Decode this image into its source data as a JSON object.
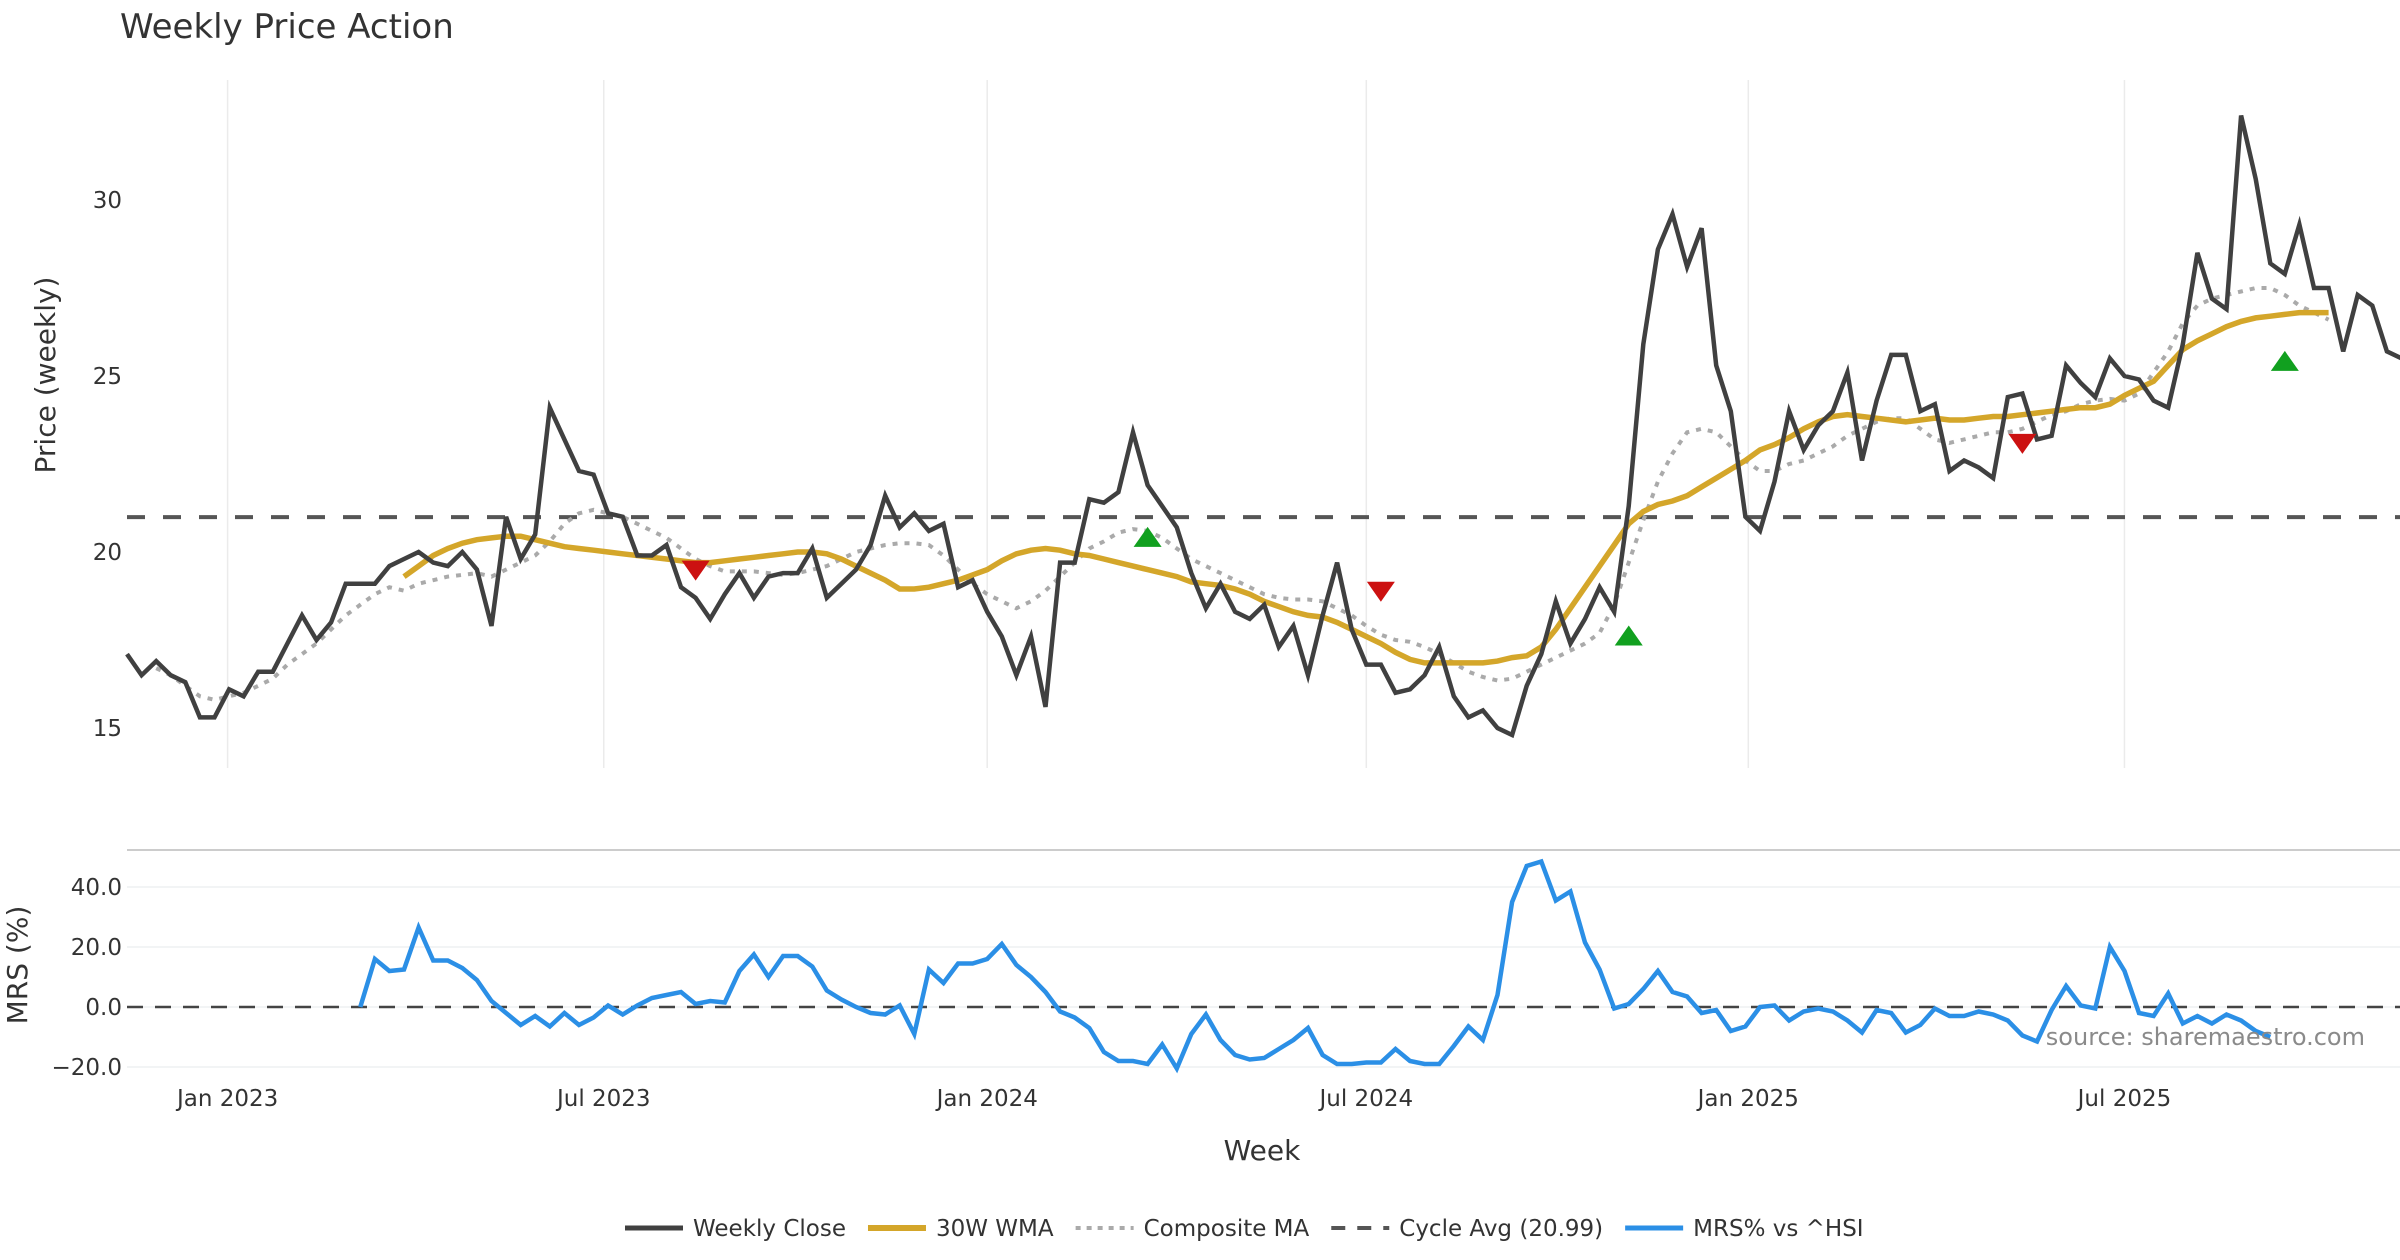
{
  "chart_data": {
    "type": "line",
    "title": "Weekly Price Action",
    "xlabel": "Week",
    "source_label": "source: sharemaestro.com",
    "x_start": "2022-11-14",
    "x_ticks": [
      {
        "label": "Jan 2023",
        "week_index": 6.9
      },
      {
        "label": "Jul 2023",
        "week_index": 32.7
      },
      {
        "label": "Jan 2024",
        "week_index": 59.0
      },
      {
        "label": "Jul 2024",
        "week_index": 85.0
      },
      {
        "label": "Jan 2025",
        "week_index": 111.2
      },
      {
        "label": "Jul 2025",
        "week_index": 137.0
      }
    ],
    "price_panel": {
      "ylabel": "Price (weekly)",
      "ylim": [
        13.8,
        33.7
      ],
      "y_ticks": [
        15,
        20,
        25,
        30
      ],
      "grid": "vertical",
      "cycle_avg": 20.99,
      "series": [
        {
          "name": "Weekly Close",
          "color": "#404040",
          "start_index": 0,
          "values": [
            17.1,
            16.5,
            16.9,
            16.5,
            16.3,
            15.3,
            15.3,
            16.1,
            15.9,
            16.6,
            16.6,
            17.4,
            18.2,
            17.5,
            18.0,
            19.1,
            19.1,
            19.1,
            19.6,
            19.8,
            20.0,
            19.7,
            19.6,
            20.0,
            19.5,
            17.9,
            21.0,
            19.8,
            20.5,
            24.1,
            23.2,
            22.3,
            22.2,
            21.1,
            21.0,
            19.9,
            19.9,
            20.2,
            19.0,
            18.7,
            18.1,
            18.8,
            19.4,
            18.7,
            19.3,
            19.4,
            19.4,
            20.1,
            18.7,
            19.1,
            19.5,
            20.2,
            21.6,
            20.7,
            21.1,
            20.6,
            20.8,
            19.0,
            19.2,
            18.3,
            17.6,
            16.5,
            17.6,
            15.6,
            19.7,
            19.7,
            21.5,
            21.4,
            21.7,
            23.4,
            21.9,
            21.3,
            20.7,
            19.4,
            18.4,
            19.1,
            18.3,
            18.1,
            18.5,
            17.3,
            17.9,
            16.5,
            18.2,
            19.7,
            17.8,
            16.8,
            16.8,
            16.0,
            16.1,
            16.5,
            17.3,
            15.9,
            15.3,
            15.5,
            15.0,
            14.8,
            16.2,
            17.1,
            18.6,
            17.4,
            18.1,
            19.0,
            18.3,
            21.3,
            25.9,
            28.6,
            29.6,
            28.1,
            29.2,
            25.3,
            24.0,
            21.0,
            20.6,
            22.0,
            24.0,
            22.9,
            23.6,
            24.0,
            25.1,
            22.6,
            24.3,
            25.6,
            25.6,
            24.0,
            24.2,
            22.3,
            22.6,
            22.4,
            22.1,
            24.4,
            24.5,
            23.2,
            23.3,
            25.3,
            24.8,
            24.4,
            25.5,
            25.0,
            24.9,
            24.3,
            24.1,
            25.9,
            28.5,
            27.2,
            26.9,
            32.4,
            30.6,
            28.2,
            27.9,
            29.3,
            27.5,
            27.5,
            25.7,
            27.3,
            27.0,
            25.7,
            25.5
          ]
        },
        {
          "name": "30W WMA",
          "color": "#D4A62A",
          "start_index": 19,
          "values": [
            19.3,
            19.6,
            19.9,
            20.1,
            20.25,
            20.35,
            20.4,
            20.45,
            20.45,
            20.35,
            20.25,
            20.15,
            20.1,
            20.05,
            20.0,
            19.95,
            19.9,
            19.85,
            19.8,
            19.75,
            19.7,
            19.7,
            19.75,
            19.8,
            19.85,
            19.9,
            19.95,
            20.0,
            20.0,
            19.95,
            19.8,
            19.6,
            19.4,
            19.2,
            18.95,
            18.95,
            19.0,
            19.1,
            19.2,
            19.35,
            19.5,
            19.75,
            19.95,
            20.05,
            20.1,
            20.05,
            19.95,
            19.9,
            19.8,
            19.7,
            19.6,
            19.5,
            19.4,
            19.3,
            19.15,
            19.1,
            19.05,
            18.95,
            18.8,
            18.6,
            18.45,
            18.3,
            18.2,
            18.15,
            18.0,
            17.8,
            17.6,
            17.4,
            17.15,
            16.95,
            16.85,
            16.85,
            16.85,
            16.85,
            16.85,
            16.9,
            17.0,
            17.05,
            17.3,
            17.8,
            18.4,
            19.0,
            19.6,
            20.2,
            20.8,
            21.15,
            21.35,
            21.45,
            21.6,
            21.85,
            22.1,
            22.35,
            22.6,
            22.9,
            23.05,
            23.25,
            23.5,
            23.7,
            23.85,
            23.9,
            23.85,
            23.8,
            23.75,
            23.7,
            23.75,
            23.8,
            23.75,
            23.75,
            23.8,
            23.85,
            23.85,
            23.9,
            23.95,
            24.0,
            24.05,
            24.1,
            24.1,
            24.2,
            24.45,
            24.65,
            24.85,
            25.3,
            25.75,
            26.0,
            26.2,
            26.4,
            26.55,
            26.65,
            26.7,
            26.75,
            26.8,
            26.8,
            26.8
          ]
        },
        {
          "name": "Composite MA",
          "color": "#AAAAAA",
          "start_index": 2,
          "values": [
            16.7,
            16.5,
            16.2,
            15.9,
            15.8,
            15.9,
            16.0,
            16.2,
            16.4,
            16.8,
            17.1,
            17.4,
            17.8,
            18.2,
            18.5,
            18.8,
            19.0,
            18.9,
            19.1,
            19.2,
            19.3,
            19.35,
            19.4,
            19.3,
            19.5,
            19.7,
            19.9,
            20.3,
            20.8,
            21.1,
            21.2,
            21.1,
            21.0,
            20.8,
            20.6,
            20.4,
            20.1,
            19.8,
            19.6,
            19.45,
            19.45,
            19.45,
            19.4,
            19.35,
            19.4,
            19.5,
            19.6,
            19.8,
            20.0,
            20.1,
            20.2,
            20.25,
            20.25,
            20.2,
            19.9,
            19.5,
            19.1,
            18.8,
            18.6,
            18.4,
            18.6,
            18.9,
            19.3,
            19.7,
            20.1,
            20.3,
            20.55,
            20.65,
            20.6,
            20.4,
            20.1,
            19.8,
            19.6,
            19.4,
            19.2,
            19.0,
            18.8,
            18.7,
            18.65,
            18.65,
            18.6,
            18.4,
            18.2,
            17.9,
            17.65,
            17.5,
            17.45,
            17.3,
            17.1,
            16.85,
            16.6,
            16.45,
            16.35,
            16.4,
            16.6,
            16.8,
            17.0,
            17.2,
            17.4,
            17.7,
            18.5,
            19.7,
            20.9,
            22.0,
            22.8,
            23.4,
            23.5,
            23.4,
            23.0,
            22.6,
            22.3,
            22.3,
            22.5,
            22.6,
            22.8,
            23.0,
            23.3,
            23.5,
            23.7,
            23.8,
            23.8,
            23.5,
            23.2,
            23.1,
            23.2,
            23.3,
            23.4,
            23.4,
            23.5,
            23.7,
            23.9,
            24.0,
            24.2,
            24.3,
            24.35,
            24.3,
            24.5,
            25.1,
            25.7,
            26.5,
            27.0,
            27.2,
            27.3,
            27.4,
            27.5,
            27.5,
            27.3,
            27.0,
            26.8,
            26.6
          ]
        },
        {
          "name": "MRS% vs ^HSI",
          "color": "#2B8FE6",
          "panel": "mrs"
        }
      ],
      "signals": [
        {
          "type": "sell",
          "week_index": 39,
          "value": 19.5,
          "color": "#CC1111"
        },
        {
          "type": "buy",
          "week_index": 70,
          "value": 20.4,
          "color": "#11A01F"
        },
        {
          "type": "sell",
          "week_index": 86,
          "value": 18.9,
          "color": "#CC1111"
        },
        {
          "type": "buy",
          "week_index": 103,
          "value": 17.6,
          "color": "#11A01F"
        },
        {
          "type": "sell",
          "week_index": 130,
          "value": 23.1,
          "color": "#CC1111"
        },
        {
          "type": "buy",
          "week_index": 148,
          "value": 25.4,
          "color": "#11A01F"
        }
      ]
    },
    "mrs_panel": {
      "ylabel": "MRS (%)",
      "ylim": [
        -22,
        52
      ],
      "y_ticks": [
        40.0,
        20.0,
        0.0,
        -20.0
      ],
      "y_tick_labels": [
        "40.0",
        "20.0",
        "0.0",
        "−20.0"
      ],
      "zero_line": 0,
      "series": {
        "name": "MRS% vs ^HSI",
        "color": "#2B8FE6",
        "start_index": 16,
        "values": [
          0.0,
          16.0,
          12.0,
          12.5,
          26.5,
          15.5,
          15.5,
          13.0,
          9.0,
          2.0,
          -2.0,
          -6.0,
          -3.0,
          -6.5,
          -2.0,
          -6.0,
          -3.5,
          0.5,
          -2.5,
          0.5,
          3.0,
          4.0,
          5.0,
          1.0,
          2.0,
          1.5,
          12.0,
          17.5,
          10.0,
          17.0,
          17.0,
          13.5,
          5.5,
          2.5,
          0.0,
          -2.0,
          -2.5,
          0.5,
          -9.0,
          12.5,
          8.0,
          14.5,
          14.5,
          16.0,
          21.0,
          14.0,
          10.0,
          5.0,
          -1.5,
          -3.5,
          -7.0,
          -15.0,
          -18.0,
          -18.0,
          -19.0,
          -12.5,
          -20.5,
          -9.0,
          -2.5,
          -11.0,
          -16.0,
          -17.5,
          -17.0,
          -14.0,
          -11.0,
          -7.0,
          -16.0,
          -19.0,
          -19.0,
          -18.5,
          -18.5,
          -14.0,
          -18.0,
          -19.0,
          -19.0,
          -13.0,
          -6.5,
          -11.0,
          4.0,
          35.0,
          47.0,
          48.5,
          35.5,
          38.5,
          21.5,
          12.5,
          -0.5,
          1.0,
          6.0,
          12.0,
          5.0,
          3.5,
          -2.0,
          -1.0,
          -8.0,
          -6.5,
          0.0,
          0.5,
          -4.5,
          -1.5,
          -0.5,
          -1.5,
          -4.5,
          -8.5,
          -1.0,
          -2.0,
          -8.5,
          -6.0,
          -0.5,
          -3.0,
          -3.0,
          -1.5,
          -2.5,
          -4.5,
          -9.5,
          -11.5,
          -1.0,
          7.0,
          0.5,
          -0.5,
          20.0,
          12.0,
          -2.0,
          -3.0,
          4.5,
          -5.5,
          -3.0,
          -5.5,
          -2.5,
          -4.5,
          -8.0,
          -10.0
        ]
      }
    },
    "legend": {
      "position": "bottom-center",
      "entries": [
        {
          "label": "Weekly Close",
          "style": "solid",
          "color": "#404040"
        },
        {
          "label": "30W WMA",
          "style": "solid-thick",
          "color": "#D4A62A"
        },
        {
          "label": "Composite MA",
          "style": "dotted",
          "color": "#AAAAAA"
        },
        {
          "label": "Cycle Avg (20.99)",
          "style": "dashed",
          "color": "#555555"
        },
        {
          "label": "MRS% vs ^HSI",
          "style": "solid",
          "color": "#2B8FE6"
        }
      ]
    }
  }
}
